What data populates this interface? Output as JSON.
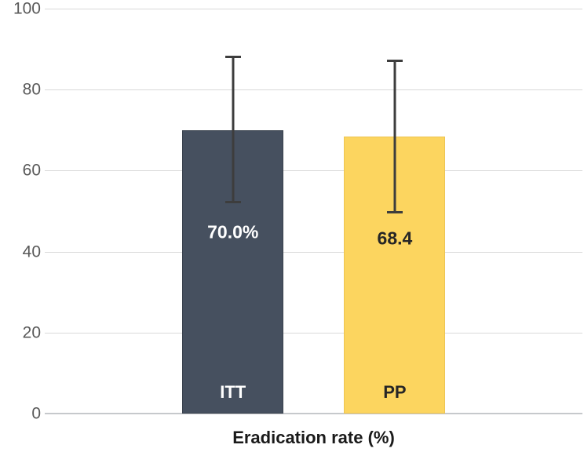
{
  "chart_data": {
    "type": "bar",
    "title": "",
    "xlabel": "Eradication rate (%)",
    "ylabel": "",
    "categories": [
      "ITT",
      "PP"
    ],
    "values": [
      70.0,
      68.4
    ],
    "value_labels": [
      "70.0%",
      "68.4"
    ],
    "error_bars": [
      {
        "low": 52.0,
        "high": 88.3
      },
      {
        "low": 49.5,
        "high": 87.5
      }
    ],
    "ylim": [
      0,
      100
    ],
    "yticks": [
      0,
      20,
      40,
      60,
      80,
      100
    ],
    "grid": "horizontal",
    "legend": "none",
    "colors": {
      "bars": [
        "#46505f",
        "#fcd55f"
      ],
      "bar_borders": [
        "#39414d",
        "#edc452"
      ],
      "value_label_colors": [
        "#ffffff",
        "#262626"
      ],
      "category_label_colors": [
        "#ffffff",
        "#262626"
      ],
      "error_bar": "#3d3d3d",
      "gridline": "#d9d9d9",
      "axis_line": "#c6c9cc",
      "tick_label": "#595959",
      "title_color": "#1a1a1a",
      "background": "#ffffff"
    }
  }
}
